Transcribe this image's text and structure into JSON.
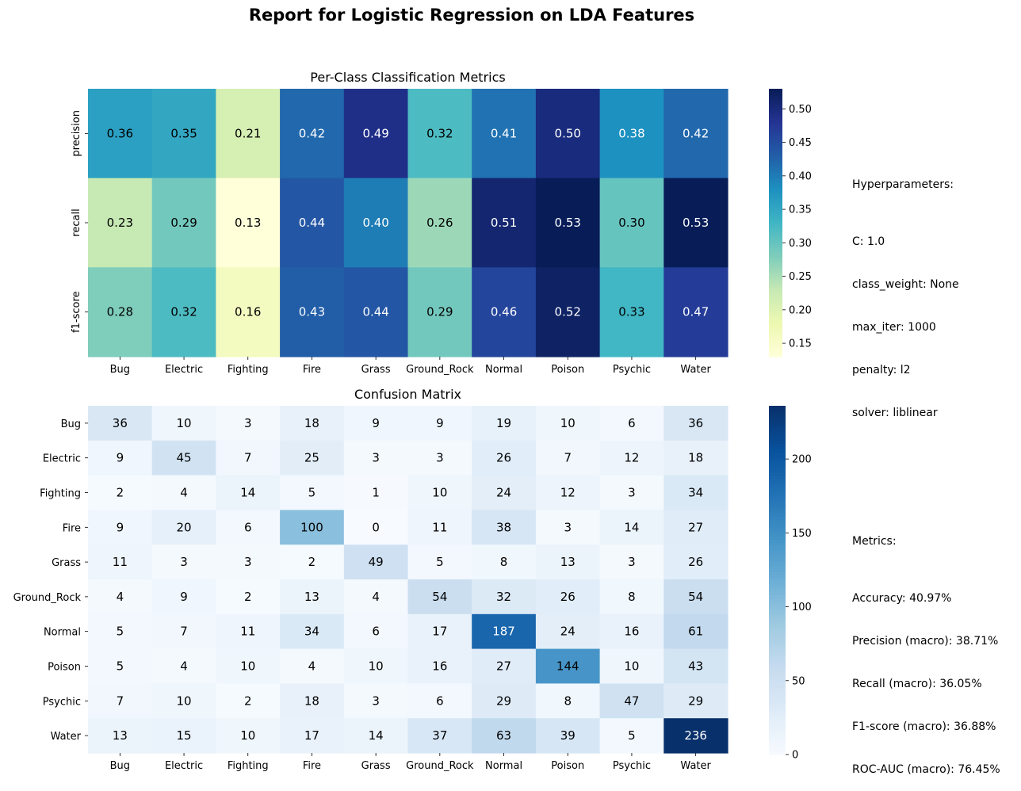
{
  "figure": {
    "suptitle": "Report for Logistic Regression on LDA Features"
  },
  "side_panels": {
    "hyperparameters": {
      "title": "Hyperparameters:",
      "lines": [
        "C: 1.0",
        "class_weight: None",
        "max_iter: 1000",
        "penalty: l2",
        "solver: liblinear"
      ]
    },
    "metrics": {
      "title": "Metrics:",
      "lines": [
        "Accuracy: 40.97%",
        "Precision (macro): 38.71%",
        "Recall (macro): 36.05%",
        "F1-score (macro): 36.88%",
        "ROC-AUC (macro): 76.45%"
      ]
    }
  },
  "colors": {
    "ylgnbu": [
      "#ffffd9",
      "#edf8b1",
      "#c7e9b4",
      "#7fcdbb",
      "#41b6c4",
      "#1d91c0",
      "#225ea8",
      "#253494",
      "#081d58"
    ],
    "blues": [
      "#f7fbff",
      "#deebf7",
      "#c6dbef",
      "#9ecae1",
      "#6baed6",
      "#4292c6",
      "#2171b5",
      "#08519c",
      "#08306b"
    ]
  },
  "chart_data": [
    {
      "type": "heatmap",
      "title": "Per-Class Classification Metrics",
      "colormap": "YlGnBu",
      "x_categories": [
        "Bug",
        "Electric",
        "Fighting",
        "Fire",
        "Grass",
        "Ground_Rock",
        "Normal",
        "Poison",
        "Psychic",
        "Water"
      ],
      "y_categories": [
        "precision",
        "recall",
        "f1-score"
      ],
      "values": [
        [
          0.36,
          0.35,
          0.21,
          0.42,
          0.49,
          0.32,
          0.41,
          0.5,
          0.38,
          0.42
        ],
        [
          0.23,
          0.29,
          0.13,
          0.44,
          0.4,
          0.26,
          0.51,
          0.53,
          0.3,
          0.53
        ],
        [
          0.28,
          0.32,
          0.16,
          0.43,
          0.44,
          0.29,
          0.46,
          0.52,
          0.33,
          0.47
        ]
      ],
      "colorbar_range": [
        0.13,
        0.53
      ],
      "colorbar_ticks": [
        "0.15",
        "0.20",
        "0.25",
        "0.30",
        "0.35",
        "0.40",
        "0.45",
        "0.50"
      ]
    },
    {
      "type": "heatmap",
      "title": "Confusion Matrix",
      "colormap": "Blues",
      "x_categories": [
        "Bug",
        "Electric",
        "Fighting",
        "Fire",
        "Grass",
        "Ground_Rock",
        "Normal",
        "Poison",
        "Psychic",
        "Water"
      ],
      "y_categories": [
        "Bug",
        "Electric",
        "Fighting",
        "Fire",
        "Grass",
        "Ground_Rock",
        "Normal",
        "Poison",
        "Psychic",
        "Water"
      ],
      "values": [
        [
          36,
          10,
          3,
          18,
          9,
          9,
          19,
          10,
          6,
          36
        ],
        [
          9,
          45,
          7,
          25,
          3,
          3,
          26,
          7,
          12,
          18
        ],
        [
          2,
          4,
          14,
          5,
          1,
          10,
          24,
          12,
          3,
          34
        ],
        [
          9,
          20,
          6,
          100,
          0,
          11,
          38,
          3,
          14,
          27
        ],
        [
          11,
          3,
          3,
          2,
          49,
          5,
          8,
          13,
          3,
          26
        ],
        [
          4,
          9,
          2,
          13,
          4,
          54,
          32,
          26,
          8,
          54
        ],
        [
          5,
          7,
          11,
          34,
          6,
          17,
          187,
          24,
          16,
          61
        ],
        [
          5,
          4,
          10,
          4,
          10,
          16,
          27,
          144,
          10,
          43
        ],
        [
          7,
          10,
          2,
          18,
          3,
          6,
          29,
          8,
          47,
          29
        ],
        [
          13,
          15,
          10,
          17,
          14,
          37,
          63,
          39,
          5,
          236
        ]
      ],
      "colorbar_range": [
        0,
        236
      ],
      "colorbar_ticks": [
        "0",
        "50",
        "100",
        "150",
        "200"
      ]
    }
  ]
}
